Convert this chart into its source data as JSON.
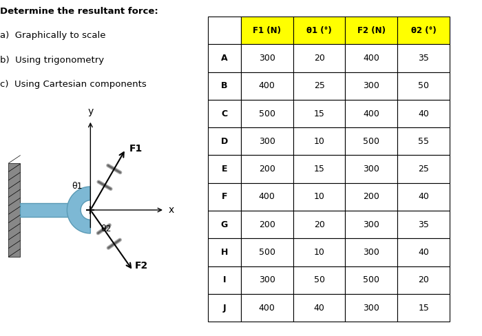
{
  "title_lines": [
    "Determine the resultant force:",
    "a)  Graphically to scale",
    "b)  Using trigonometry",
    "c)  Using Cartesian components"
  ],
  "table_headers": [
    "",
    "F1 (N)",
    "θ1 (°)",
    "F2 (N)",
    "θ2 (°)"
  ],
  "table_rows": [
    [
      "A",
      "300",
      "20",
      "400",
      "35"
    ],
    [
      "B",
      "400",
      "25",
      "300",
      "50"
    ],
    [
      "C",
      "500",
      "15",
      "400",
      "40"
    ],
    [
      "D",
      "300",
      "10",
      "500",
      "55"
    ],
    [
      "E",
      "200",
      "15",
      "300",
      "25"
    ],
    [
      "F",
      "400",
      "10",
      "200",
      "40"
    ],
    [
      "G",
      "200",
      "20",
      "300",
      "35"
    ],
    [
      "H",
      "500",
      "10",
      "300",
      "40"
    ],
    [
      "I",
      "300",
      "50",
      "500",
      "20"
    ],
    [
      "J",
      "400",
      "40",
      "300",
      "15"
    ]
  ],
  "header_bg": "#ffff00",
  "col3_bg": "#ffff00",
  "row_bg_odd": "#ffffff",
  "row_bg_even": "#ffffff",
  "fig_width": 7.0,
  "fig_height": 4.88
}
